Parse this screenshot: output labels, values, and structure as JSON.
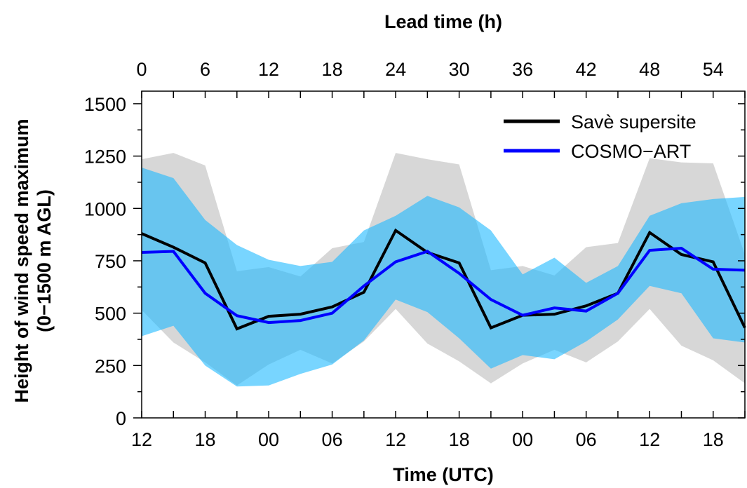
{
  "chart_data": {
    "type": "line",
    "top_axis_title": "Lead time (h)",
    "xlabel": "Time (UTC)",
    "ylabel_line1": "Height of wind speed maximum",
    "ylabel_line2": "(0−1500 m AGL)",
    "ylim": [
      0,
      1560
    ],
    "yticks": [
      0,
      250,
      500,
      750,
      1000,
      1250,
      1500
    ],
    "ytick_labels": [
      "0",
      "250",
      "500",
      "750",
      "1000",
      "1250",
      "1500"
    ],
    "lead_time_range": [
      0,
      57
    ],
    "lead_time_ticks": [
      0,
      6,
      12,
      18,
      24,
      30,
      36,
      42,
      48,
      54
    ],
    "lead_time_labels": [
      "0",
      "6",
      "12",
      "18",
      "24",
      "30",
      "36",
      "42",
      "48",
      "54"
    ],
    "bottom_tick_positions": [
      0,
      6,
      12,
      18,
      24,
      30,
      36,
      42,
      48,
      54
    ],
    "bottom_tick_labels": [
      "12",
      "18",
      "00",
      "06",
      "12",
      "18",
      "00",
      "06",
      "12",
      "18"
    ],
    "minor_tick_step": 3,
    "legend_position": "top-right",
    "x": [
      0,
      3,
      6,
      9,
      12,
      15,
      18,
      21,
      24,
      27,
      30,
      33,
      36,
      39,
      42,
      45,
      48,
      51,
      54,
      57
    ],
    "series": [
      {
        "name": "Savè supersite",
        "color": "#000000",
        "band_color": "#d3d3d3",
        "values": [
          880,
          815,
          740,
          425,
          485,
          495,
          530,
          600,
          895,
          790,
          740,
          430,
          490,
          495,
          535,
          595,
          885,
          780,
          745,
          430
        ],
        "upper": [
          1235,
          1265,
          1205,
          700,
          720,
          675,
          810,
          840,
          1265,
          1235,
          1210,
          705,
          725,
          680,
          815,
          835,
          1240,
          1220,
          1215,
          780
        ],
        "lower": [
          515,
          360,
          265,
          155,
          255,
          325,
          260,
          365,
          520,
          355,
          270,
          165,
          260,
          325,
          265,
          365,
          520,
          345,
          275,
          165
        ]
      },
      {
        "name": "COSMO−ART",
        "color": "#0000ff",
        "band_color": "#1eb9ff",
        "values": [
          790,
          795,
          595,
          488,
          455,
          465,
          500,
          630,
          745,
          795,
          690,
          565,
          490,
          525,
          510,
          595,
          800,
          810,
          710,
          705
        ],
        "upper": [
          1195,
          1145,
          945,
          825,
          755,
          725,
          745,
          895,
          965,
          1060,
          1005,
          895,
          685,
          765,
          645,
          725,
          965,
          1025,
          1045,
          1055
        ],
        "lower": [
          390,
          440,
          250,
          150,
          155,
          210,
          255,
          370,
          565,
          505,
          380,
          235,
          300,
          280,
          365,
          470,
          630,
          595,
          380,
          360
        ]
      }
    ]
  }
}
